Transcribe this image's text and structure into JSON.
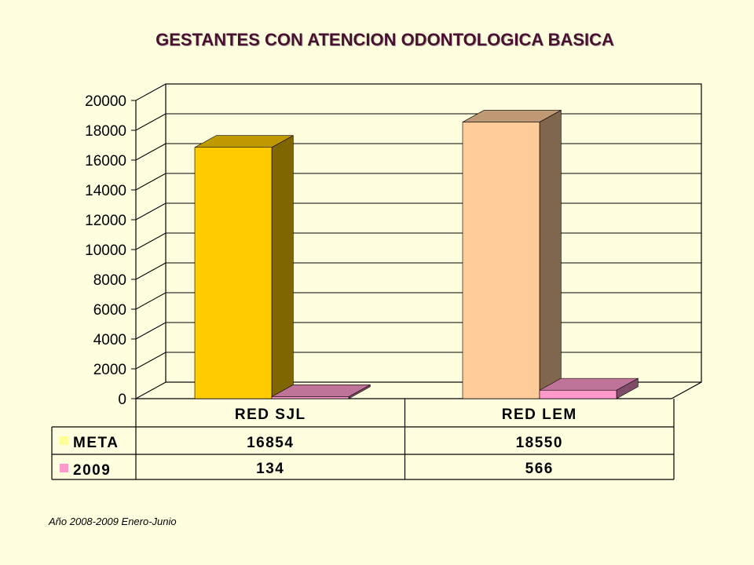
{
  "chart_data": {
    "type": "bar",
    "title": "GESTANTES CON ATENCION ODONTOLOGICA BASICA",
    "categories": [
      "RED SJL",
      "RED LEM"
    ],
    "series": [
      {
        "name": "META",
        "values": [
          16854,
          18550
        ],
        "colors": [
          "#FFCC00",
          "#FFCC99"
        ],
        "value_labels": [
          "16854",
          "18550"
        ],
        "legend_color": "#FFFF99"
      },
      {
        "name": "2009",
        "values": [
          134,
          566
        ],
        "colors": [
          "#FF99CC",
          "#FF99CC"
        ],
        "value_labels": [
          "134",
          "566"
        ],
        "legend_color": "#FF99CC"
      }
    ],
    "ylim": [
      0,
      20000
    ],
    "yticks": [
      "0",
      "2000",
      "4000",
      "6000",
      "8000",
      "10000",
      "12000",
      "14000",
      "16000",
      "18000",
      "20000"
    ],
    "grid": true,
    "legend": "data-table"
  },
  "footnote": "Año 2008-2009 Enero-Junio"
}
